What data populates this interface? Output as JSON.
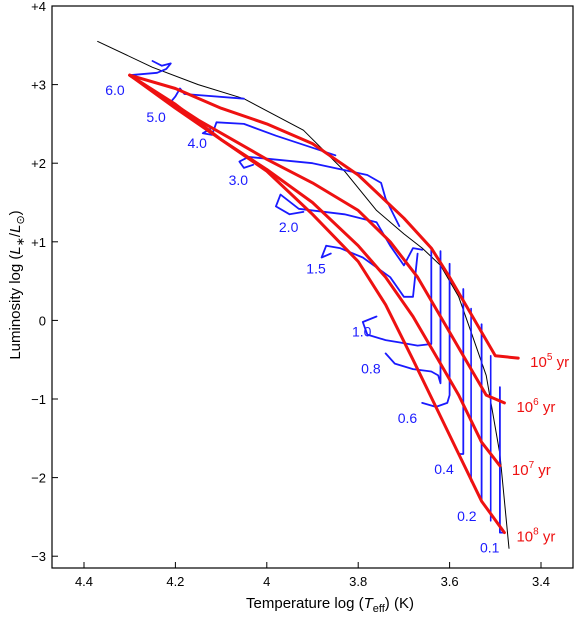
{
  "chart_data": {
    "type": "line",
    "xlabel": {
      "prefix": "Temperature   log (",
      "var": "T",
      "sub": "eff",
      "suffix": ")     (K)"
    },
    "ylabel": {
      "prefix": "Luminosity   log (",
      "num": "L",
      "numsub": "∗",
      "den": "L",
      "densub": "⊙",
      "suffix": ")"
    },
    "xlim": [
      4.47,
      3.33
    ],
    "ylim": [
      -3.15,
      4.0
    ],
    "x_ticks": [
      4.4,
      4.2,
      4.0,
      3.8,
      3.6,
      3.4
    ],
    "x_tick_labels": [
      "4.4",
      "4.2",
      "4",
      "3.8",
      "3.6",
      "3.4"
    ],
    "y_ticks": [
      4,
      3,
      2,
      1,
      0,
      -1,
      -2,
      -3
    ],
    "y_tick_labels": [
      "+4",
      "+3",
      "+2",
      "+1",
      "0",
      "−1",
      "−2",
      "−3"
    ],
    "colors": {
      "envelope": "#000000",
      "tracks": "#1a1aff",
      "isochrones": "#ee1111",
      "birthline": "#222222"
    },
    "series": [
      {
        "kind": "envelope",
        "x": [
          4.37,
          4.25,
          4.15,
          4.05,
          3.92,
          3.83,
          3.76,
          3.7,
          3.66,
          3.62,
          3.58,
          3.55,
          3.52,
          3.49,
          3.47
        ],
        "y": [
          3.55,
          3.22,
          3.0,
          2.82,
          2.42,
          1.9,
          1.4,
          1.1,
          0.92,
          0.7,
          0.3,
          -0.2,
          -0.7,
          -1.7,
          -2.9
        ]
      },
      {
        "kind": "isochrone",
        "age_base": "10",
        "age_exp": "5",
        "age_unit": "yr",
        "x": [
          4.3,
          4.2,
          4.1,
          4.0,
          3.9,
          3.8,
          3.7,
          3.64,
          3.6,
          3.55,
          3.5,
          3.45
        ],
        "y": [
          3.12,
          2.95,
          2.7,
          2.5,
          2.25,
          1.85,
          1.3,
          0.92,
          0.55,
          0.05,
          -0.45,
          -0.48
        ]
      },
      {
        "kind": "isochrone",
        "age_base": "10",
        "age_exp": "6",
        "age_unit": "yr",
        "x": [
          4.3,
          4.15,
          4.0,
          3.9,
          3.8,
          3.73,
          3.67,
          3.62,
          3.57,
          3.52,
          3.48
        ],
        "y": [
          3.12,
          2.55,
          2.05,
          1.75,
          1.4,
          1.0,
          0.55,
          0.05,
          -0.45,
          -0.95,
          -1.05
        ]
      },
      {
        "kind": "isochrone",
        "age_base": "10",
        "age_exp": "7",
        "age_unit": "yr",
        "x": [
          4.3,
          4.2,
          4.1,
          4.0,
          3.9,
          3.8,
          3.74,
          3.68,
          3.63,
          3.58,
          3.53,
          3.49
        ],
        "y": [
          3.12,
          2.7,
          2.3,
          1.92,
          1.5,
          0.95,
          0.55,
          0.05,
          -0.45,
          -0.95,
          -1.55,
          -1.85
        ]
      },
      {
        "kind": "isochrone",
        "age_base": "10",
        "age_exp": "8",
        "age_unit": "yr",
        "x": [
          4.3,
          4.2,
          4.1,
          4.0,
          3.9,
          3.8,
          3.74,
          3.68,
          3.63,
          3.58,
          3.53,
          3.48
        ],
        "y": [
          3.12,
          2.75,
          2.3,
          1.9,
          1.35,
          0.75,
          0.2,
          -0.5,
          -1.1,
          -1.7,
          -2.3,
          -2.7
        ]
      },
      {
        "kind": "track",
        "mass": "6.0",
        "x": [
          4.3,
          4.24,
          4.22,
          4.21,
          4.23,
          4.25
        ],
        "y": [
          3.12,
          3.15,
          3.2,
          3.27,
          3.24,
          3.3
        ]
      },
      {
        "kind": "track",
        "mass": "5.0",
        "x": [
          4.21,
          4.2,
          4.19,
          4.18,
          4.05
        ],
        "y": [
          2.78,
          2.85,
          2.95,
          2.88,
          2.82
        ]
      },
      {
        "kind": "track",
        "mass": "4.0",
        "x": [
          4.12,
          4.14,
          4.12,
          4.11,
          4.05,
          3.98,
          3.85
        ],
        "y": [
          2.45,
          2.38,
          2.36,
          2.52,
          2.5,
          2.35,
          2.1
        ]
      },
      {
        "kind": "track",
        "mass": "3.0",
        "x": [
          4.03,
          4.05,
          4.06,
          4.04,
          3.9,
          3.78,
          3.75,
          3.74,
          3.71
        ],
        "y": [
          1.98,
          1.94,
          2.02,
          2.08,
          2.0,
          1.85,
          1.75,
          1.55,
          1.2
        ]
      },
      {
        "kind": "track",
        "mass": "2.0",
        "x": [
          3.92,
          3.95,
          3.98,
          3.97,
          3.93,
          3.83,
          3.76,
          3.73,
          3.7,
          3.68,
          3.66
        ],
        "y": [
          1.38,
          1.35,
          1.45,
          1.6,
          1.42,
          1.35,
          1.25,
          0.95,
          0.7,
          0.92,
          0.9
        ]
      },
      {
        "kind": "track",
        "mass": "1.5",
        "x": [
          3.86,
          3.88,
          3.87,
          3.84,
          3.79,
          3.73,
          3.7,
          3.68,
          3.67
        ],
        "y": [
          0.85,
          0.8,
          0.95,
          0.92,
          0.8,
          0.55,
          0.3,
          0.3,
          0.85
        ]
      },
      {
        "kind": "track",
        "mass": "1.0",
        "x": [
          3.76,
          3.79,
          3.78,
          3.74,
          3.71,
          3.67,
          3.64,
          3.64
        ],
        "y": [
          0.05,
          -0.02,
          -0.18,
          -0.25,
          -0.28,
          -0.32,
          -0.3,
          0.9
        ]
      },
      {
        "kind": "track",
        "mass": "0.8",
        "x": [
          3.74,
          3.72,
          3.68,
          3.64,
          3.625,
          3.62,
          3.62
        ],
        "y": [
          -0.42,
          -0.55,
          -0.62,
          -0.65,
          -0.7,
          -0.8,
          0.88
        ]
      },
      {
        "kind": "track",
        "mass": "0.6",
        "x": [
          3.66,
          3.63,
          3.605,
          3.6,
          3.6
        ],
        "y": [
          -1.05,
          -1.1,
          -1.05,
          -0.95,
          0.72
        ]
      },
      {
        "kind": "track",
        "mass": "0.4",
        "x": [
          3.58,
          3.57,
          3.57
        ],
        "y": [
          -1.7,
          -1.7,
          0.4
        ]
      },
      {
        "kind": "track",
        "mass": "0.2",
        "x": [
          3.53,
          3.53,
          3.53
        ],
        "y": [
          -2.3,
          -2.3,
          -0.05
        ]
      },
      {
        "kind": "track",
        "mass": "0.1",
        "x": [
          3.48,
          3.49,
          3.49
        ],
        "y": [
          -2.7,
          -2.7,
          -0.85
        ]
      },
      {
        "kind": "track-vertical",
        "mass": "",
        "x": [
          3.553,
          3.553
        ],
        "y": [
          -2.05,
          0.15
        ]
      },
      {
        "kind": "track-vertical",
        "mass": "",
        "x": [
          3.51,
          3.51
        ],
        "y": [
          -2.55,
          -0.45
        ]
      }
    ]
  }
}
